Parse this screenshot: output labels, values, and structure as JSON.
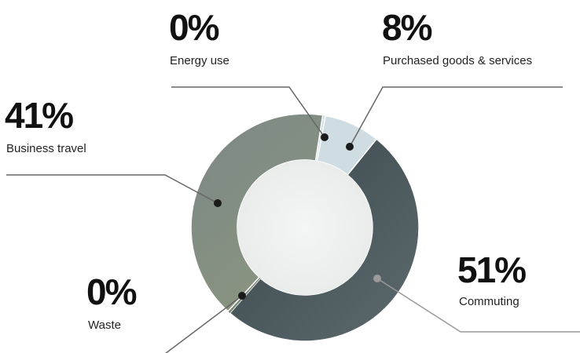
{
  "chart_data": {
    "type": "pie",
    "donut": true,
    "categories": [
      "Energy use",
      "Purchased goods & services",
      "Commuting",
      "Waste",
      "Business travel"
    ],
    "values": [
      0,
      8,
      51,
      0,
      41
    ],
    "labels": [
      "0%",
      "8%",
      "51%",
      "0%",
      "41%"
    ],
    "colors": [
      "#cfdde2",
      "#cfdde2",
      "#4f5c60",
      "#7c8879",
      "#828d86"
    ],
    "title": "",
    "legend": "none"
  }
}
